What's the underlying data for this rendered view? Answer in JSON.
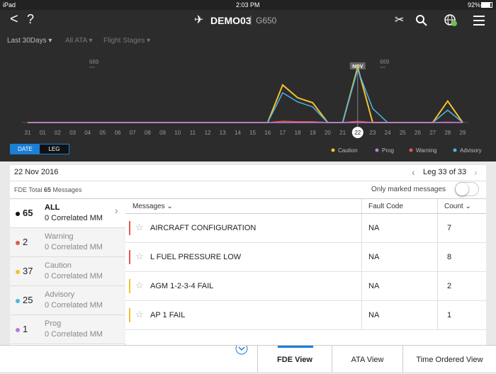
{
  "status_bar": {
    "device": "iPad",
    "time": "2:03 PM",
    "battery": "92%"
  },
  "nav": {
    "title": "DEMO03",
    "subtitle": "G650"
  },
  "filters": [
    "Last 30Days",
    "All ATA",
    "Flight Stages"
  ],
  "chart_data": {
    "type": "line",
    "categories": [
      "31",
      "01",
      "02",
      "03",
      "04",
      "05",
      "06",
      "07",
      "08",
      "09",
      "10",
      "11",
      "12",
      "13",
      "14",
      "15",
      "16",
      "17",
      "18",
      "19",
      "20",
      "21",
      "22",
      "23",
      "24",
      "25",
      "26",
      "27",
      "28",
      "29"
    ],
    "ylim": [
      0,
      669
    ],
    "yticks": [
      669
    ],
    "annotation": "NOV",
    "selected_category": "22",
    "series": [
      {
        "name": "Caution",
        "color": "#f2c12e",
        "values": [
          0,
          0,
          0,
          0,
          0,
          0,
          0,
          0,
          0,
          0,
          0,
          0,
          0,
          0,
          0,
          0,
          0,
          455,
          300,
          240,
          0,
          0,
          669,
          0,
          0,
          0,
          0,
          0,
          260,
          0
        ]
      },
      {
        "name": "Prog",
        "color": "#b57fd6",
        "values": [
          0,
          0,
          0,
          0,
          0,
          0,
          0,
          0,
          0,
          0,
          0,
          0,
          0,
          0,
          0,
          0,
          0,
          0,
          0,
          0,
          0,
          0,
          0,
          0,
          0,
          0,
          0,
          0,
          0,
          0
        ]
      },
      {
        "name": "Warning",
        "color": "#e8554e",
        "values": [
          0,
          0,
          0,
          0,
          0,
          0,
          0,
          0,
          0,
          0,
          0,
          0,
          0,
          0,
          0,
          0,
          0,
          15,
          10,
          10,
          0,
          0,
          15,
          0,
          0,
          0,
          0,
          0,
          5,
          0
        ]
      },
      {
        "name": "Advisory",
        "color": "#4fb3e8",
        "values": [
          0,
          0,
          0,
          0,
          0,
          0,
          0,
          0,
          0,
          0,
          0,
          0,
          0,
          0,
          0,
          0,
          0,
          360,
          250,
          190,
          0,
          0,
          640,
          170,
          0,
          0,
          0,
          0,
          150,
          0
        ]
      }
    ]
  },
  "toggle": [
    "DATE",
    "LEG"
  ],
  "details": {
    "date": "22 Nov 2016",
    "leg": "Leg 33 of 33",
    "total_label": "FDE Total",
    "total": 65,
    "total_unit": "Messages",
    "marked_filter": "Only marked messages"
  },
  "groups": [
    {
      "count": 65,
      "name": "ALL",
      "sub": "0 Correlated MM",
      "color": "#111111"
    },
    {
      "count": 2,
      "name": "Warning",
      "sub": "0 Correlated MM",
      "color": "#e8554e"
    },
    {
      "count": 37,
      "name": "Caution",
      "sub": "0 Correlated MM",
      "color": "#f2c12e"
    },
    {
      "count": 25,
      "name": "Advisory",
      "sub": "0 Correlated MM",
      "color": "#4fb3e8"
    },
    {
      "count": 1,
      "name": "Prog",
      "sub": "0 Correlated MM",
      "color": "#b57fd6"
    }
  ],
  "table": {
    "headers": [
      "Messages",
      "Fault Code",
      "Count"
    ],
    "rows": [
      {
        "message": "AIRCRAFT CONFIGURATION",
        "fault_code": "NA",
        "count": 7,
        "color": "#e8554e"
      },
      {
        "message": "L FUEL PRESSURE LOW",
        "fault_code": "NA",
        "count": 8,
        "color": "#e8554e"
      },
      {
        "message": "AGM 1-2-3-4 FAIL",
        "fault_code": "NA",
        "count": 2,
        "color": "#f2c12e"
      },
      {
        "message": "AP 1 FAIL",
        "fault_code": "NA",
        "count": 1,
        "color": "#f2c12e"
      }
    ]
  },
  "tabs": [
    "FDE View",
    "ATA View",
    "Time Ordered View"
  ]
}
